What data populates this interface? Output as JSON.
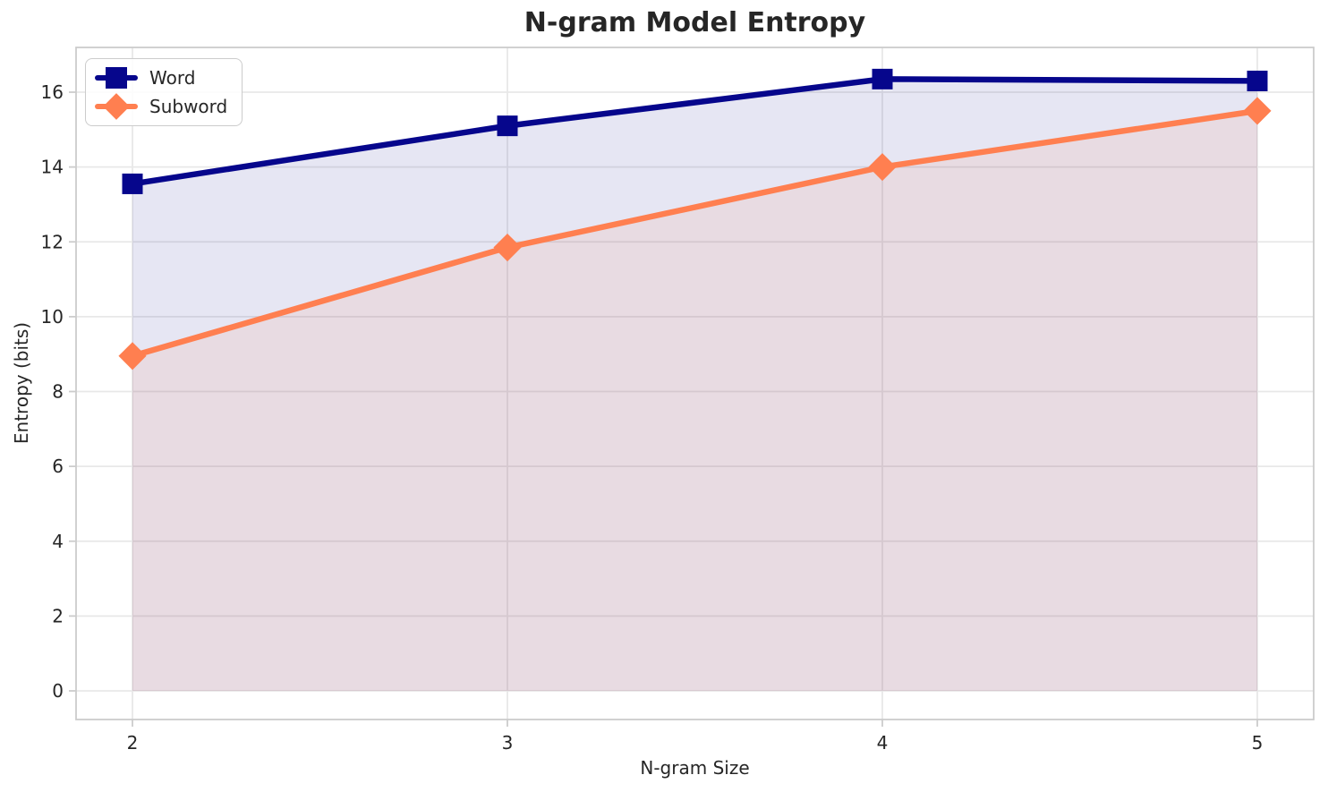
{
  "chart_data": {
    "type": "line",
    "title": "N-gram Model Entropy",
    "xlabel": "N-gram Size",
    "ylabel": "Entropy (bits)",
    "x": [
      2,
      3,
      4,
      5
    ],
    "xtick_labels": [
      "2",
      "3",
      "4",
      "5"
    ],
    "ytick_values": [
      0,
      2,
      4,
      6,
      8,
      10,
      12,
      14,
      16
    ],
    "ytick_labels": [
      "0",
      "2",
      "4",
      "6",
      "8",
      "10",
      "12",
      "14",
      "16"
    ],
    "xlim": [
      1.85,
      5.15
    ],
    "ylim": [
      -0.75,
      17.2
    ],
    "grid": true,
    "legend_position": "upper left",
    "fill_to_zero": true,
    "fill_alpha": 0.1,
    "series": [
      {
        "name": "Word",
        "marker": "square",
        "color": "#06068c",
        "values": [
          13.55,
          15.1,
          16.35,
          16.3
        ]
      },
      {
        "name": "Subword",
        "marker": "diamond",
        "color": "#ff7f50",
        "values": [
          8.95,
          11.85,
          14.0,
          15.5
        ]
      }
    ],
    "style": {
      "grid_color": "#e8e8e8",
      "spine_color": "#cccccc",
      "text_color": "#262626",
      "background": "#ffffff"
    }
  }
}
